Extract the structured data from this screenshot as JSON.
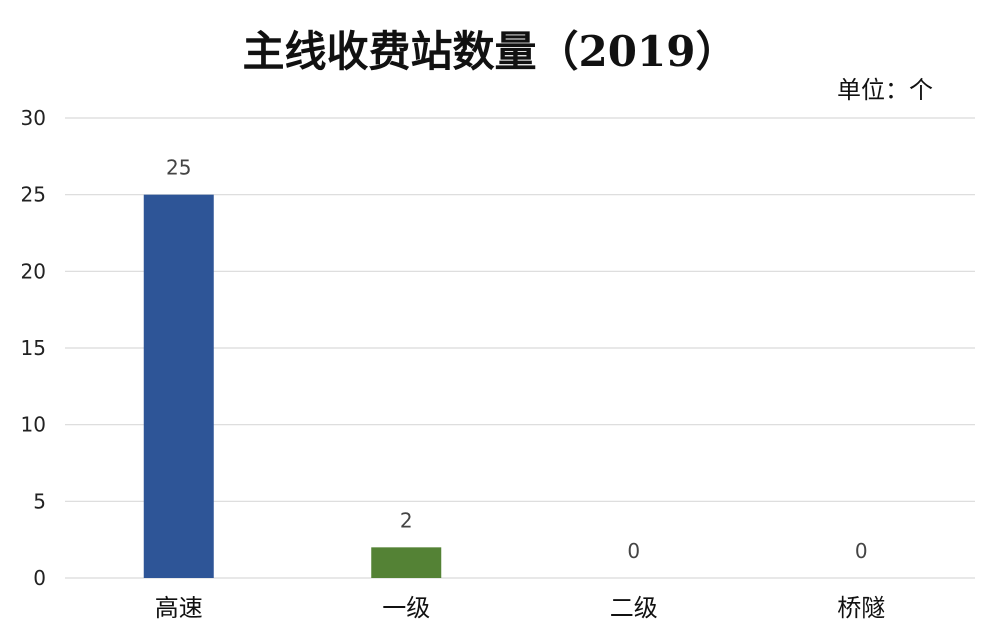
{
  "chart_data": {
    "type": "bar",
    "title": "主线收费站数量（2019）",
    "unit_label": "单位：个",
    "categories": [
      "高速",
      "一级",
      "二级",
      "桥隧"
    ],
    "values": [
      25,
      2,
      0,
      0
    ],
    "data_labels": [
      "25",
      "2",
      "0",
      "0"
    ],
    "bar_colors": [
      "#2e5597",
      "#548235",
      "#2e5597",
      "#2e5597"
    ],
    "ylim": [
      0,
      30
    ],
    "yticks": [
      0,
      5,
      10,
      15,
      20,
      25,
      30
    ],
    "ytick_labels": [
      "0",
      "5",
      "10",
      "15",
      "20",
      "25",
      "30"
    ],
    "xlabel": "",
    "ylabel": "",
    "grid": true,
    "legend": "none"
  }
}
